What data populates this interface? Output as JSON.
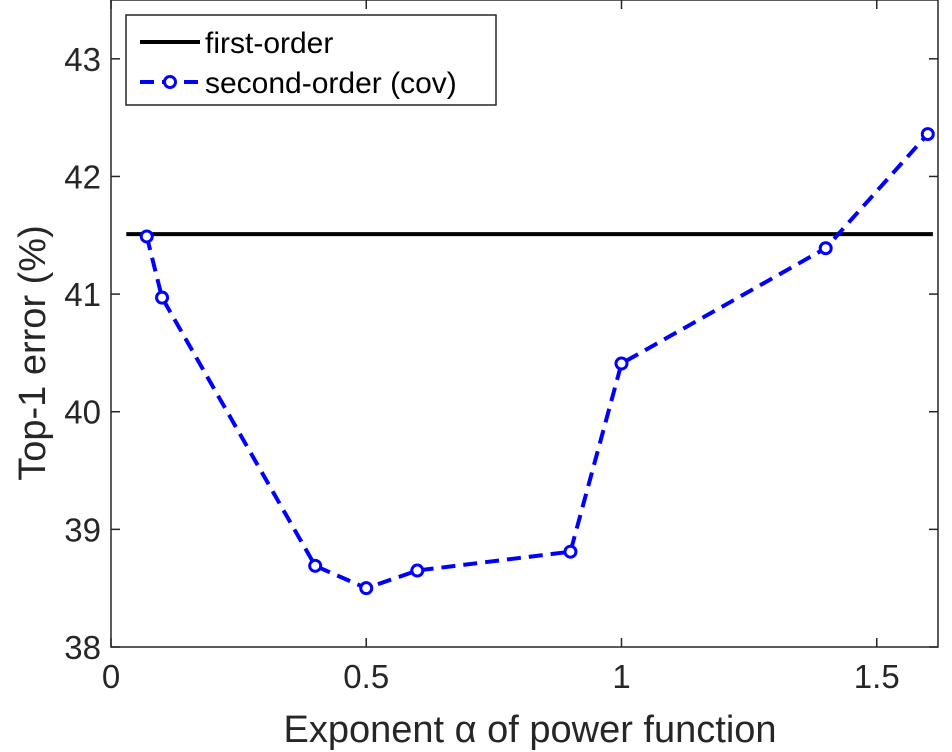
{
  "chart_data": {
    "type": "line",
    "xlabel": "Exponent α of power function",
    "ylabel": "Top-1  error (%)",
    "xlim": [
      0,
      1.62
    ],
    "ylim": [
      38,
      43.5
    ],
    "xticks": [
      0,
      0.5,
      1,
      1.5
    ],
    "xtick_labels": [
      "0",
      "0.5",
      "1",
      "1.5"
    ],
    "yticks": [
      38,
      39,
      40,
      41,
      42,
      43
    ],
    "ytick_labels": [
      "38",
      "39",
      "40",
      "41",
      "42",
      "43"
    ],
    "grid": false,
    "legend_position": "top-left",
    "series": [
      {
        "name": "first-order",
        "style": "solid",
        "color": "#000000",
        "x": [
          0.03,
          1.61
        ],
        "y": [
          41.51,
          41.51
        ]
      },
      {
        "name": "second-order (cov)",
        "style": "dashed",
        "marker": "circle",
        "color": "#0000ff",
        "x": [
          0.07,
          0.1,
          0.4,
          0.5,
          0.6,
          0.9,
          1.0,
          1.4,
          1.6
        ],
        "y": [
          41.49,
          40.97,
          38.69,
          38.5,
          38.65,
          38.81,
          40.41,
          41.39,
          42.36
        ]
      }
    ]
  }
}
